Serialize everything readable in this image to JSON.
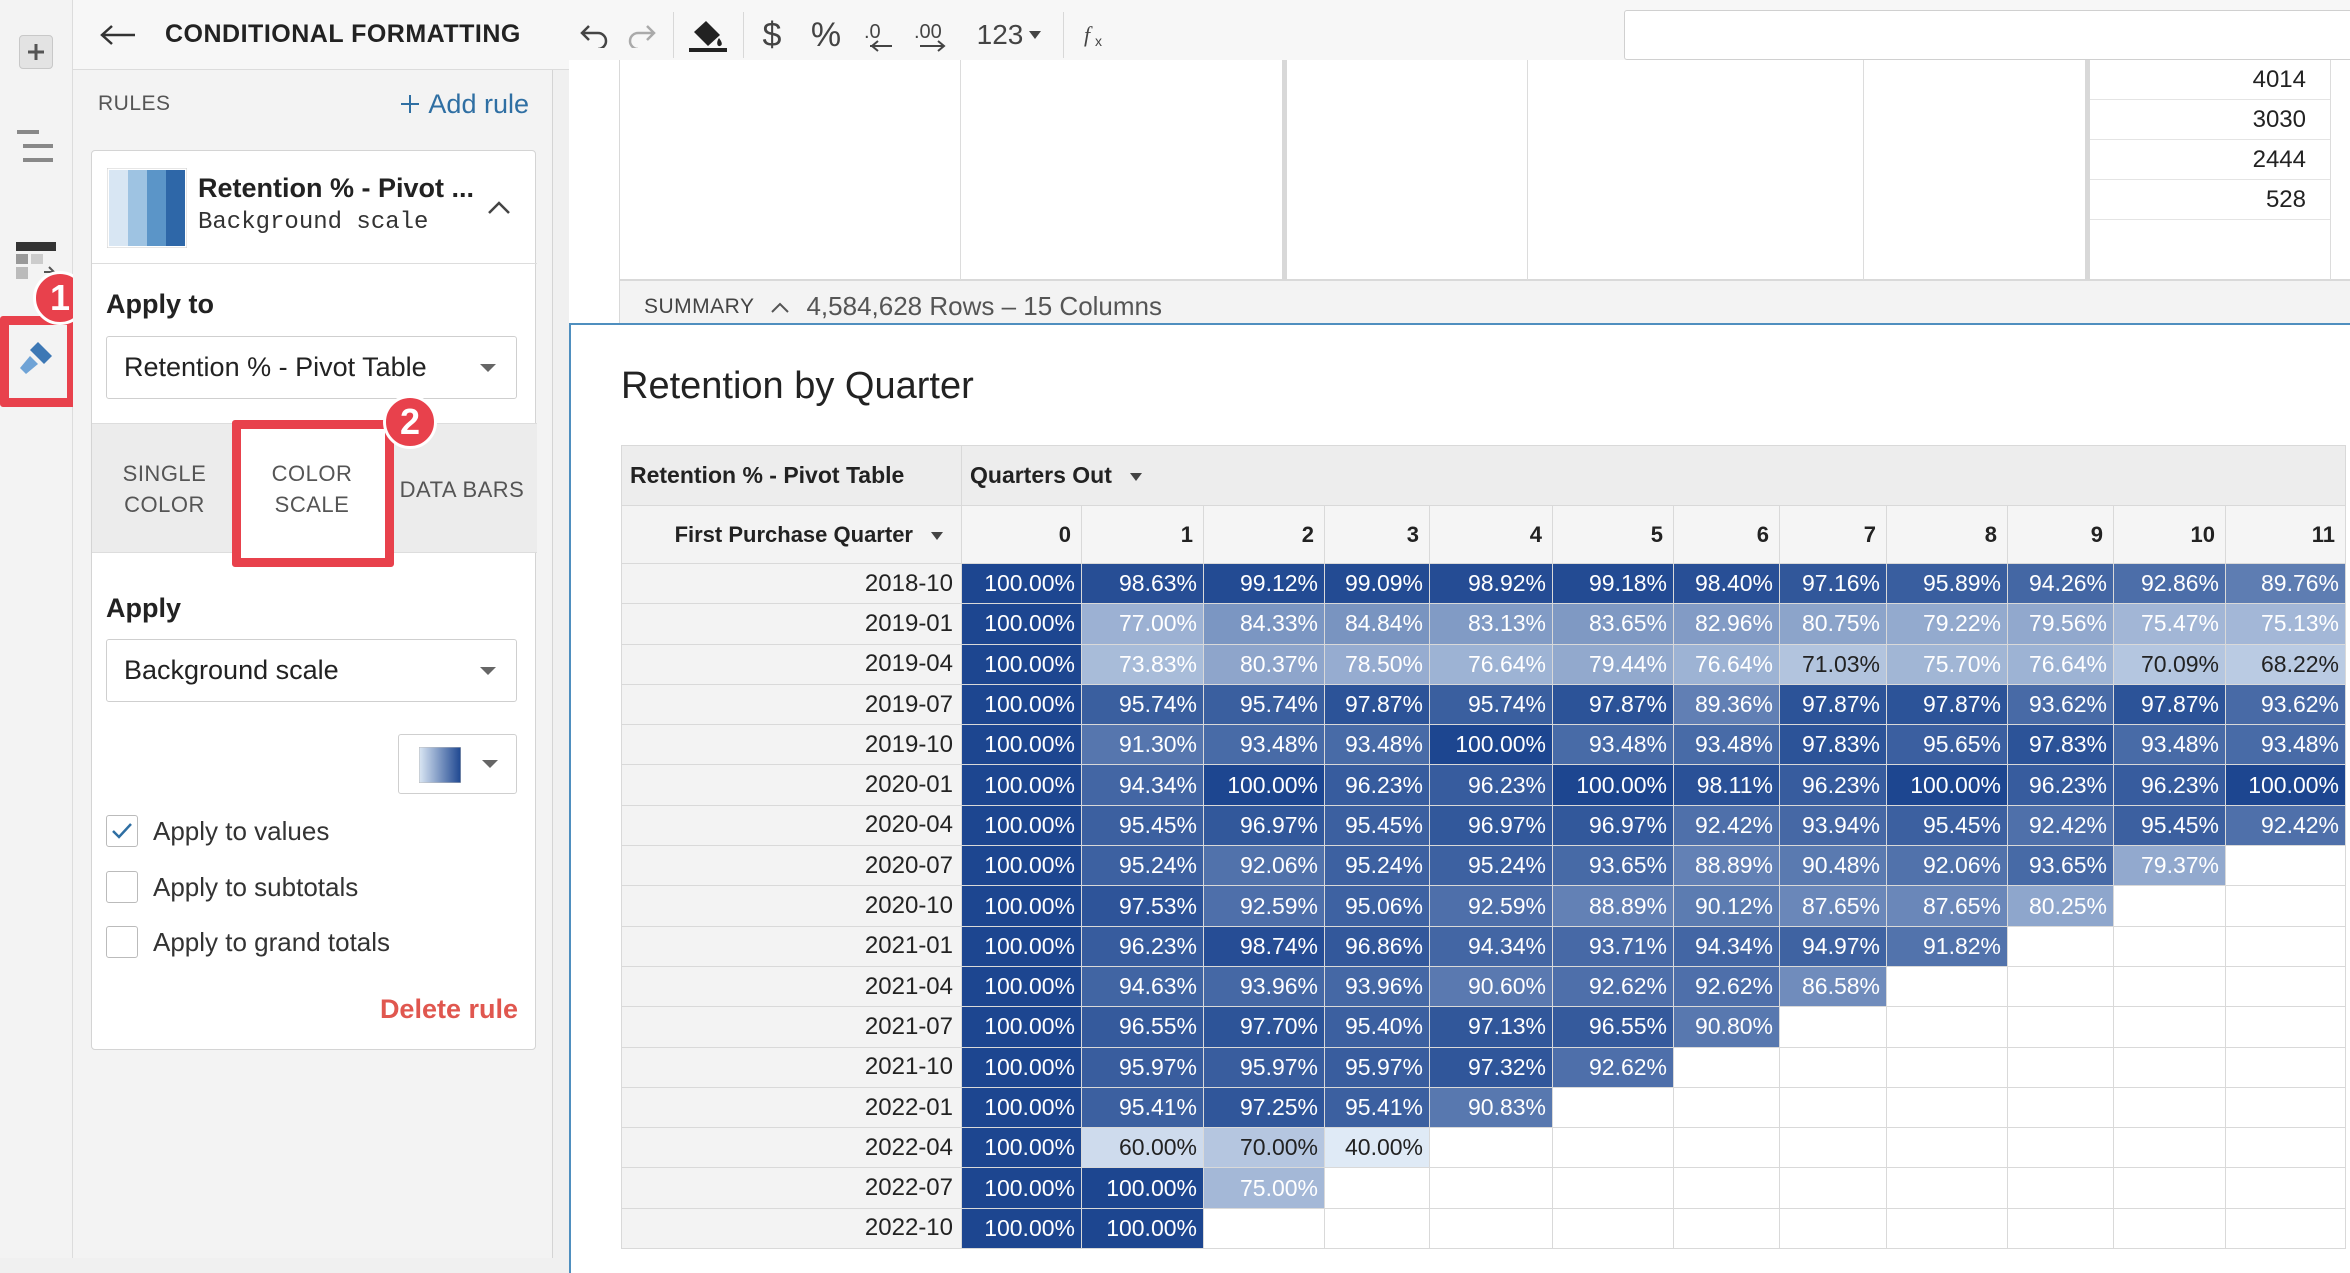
{
  "panel": {
    "title": "CONDITIONAL FORMATTING",
    "rules_label": "RULES",
    "add_rule_label": "Add rule",
    "rule": {
      "name": "Retention % - Pivot ...",
      "type": "Background scale"
    },
    "apply_to_label": "Apply to",
    "apply_to_value": "Retention % - Pivot Table",
    "tabs": [
      {
        "label": "SINGLE COLOR"
      },
      {
        "label": "COLOR SCALE"
      },
      {
        "label": "DATA BARS"
      }
    ],
    "apply_label": "Apply",
    "apply_value": "Background scale",
    "checks": [
      {
        "label": "Apply to values",
        "checked": true
      },
      {
        "label": "Apply to subtotals",
        "checked": false
      },
      {
        "label": "Apply to grand totals",
        "checked": false
      }
    ],
    "delete_rule_label": "Delete rule"
  },
  "callouts": [
    "1",
    "2"
  ],
  "toolbar": {
    "number_format": "123"
  },
  "top_table": {
    "values": [
      "4014",
      "3030",
      "2444",
      "528"
    ],
    "summary_label": "SUMMARY",
    "summary_counts": "4,584,628 Rows – 15 Columns"
  },
  "pivot": {
    "title": "Retention by Quarter",
    "values_label": "Retention % - Pivot Table",
    "column_label": "Quarters Out",
    "row_label": "First Purchase Quarter",
    "columns": [
      "0",
      "1",
      "2",
      "3",
      "4",
      "5",
      "6",
      "7",
      "8",
      "9",
      "10",
      "11"
    ],
    "rows": [
      {
        "label": "2018-10",
        "values": [
          "100.00%",
          "98.63%",
          "99.12%",
          "99.09%",
          "98.92%",
          "99.18%",
          "98.40%",
          "97.16%",
          "95.89%",
          "94.26%",
          "92.86%",
          "89.76%"
        ]
      },
      {
        "label": "2019-01",
        "values": [
          "100.00%",
          "77.00%",
          "84.33%",
          "84.84%",
          "83.13%",
          "83.65%",
          "82.96%",
          "80.75%",
          "79.22%",
          "79.56%",
          "75.47%",
          "75.13%"
        ]
      },
      {
        "label": "2019-04",
        "values": [
          "100.00%",
          "73.83%",
          "80.37%",
          "78.50%",
          "76.64%",
          "79.44%",
          "76.64%",
          "71.03%",
          "75.70%",
          "76.64%",
          "70.09%",
          "68.22%"
        ]
      },
      {
        "label": "2019-07",
        "values": [
          "100.00%",
          "95.74%",
          "95.74%",
          "97.87%",
          "95.74%",
          "97.87%",
          "89.36%",
          "97.87%",
          "97.87%",
          "93.62%",
          "97.87%",
          "93.62%"
        ]
      },
      {
        "label": "2019-10",
        "values": [
          "100.00%",
          "91.30%",
          "93.48%",
          "93.48%",
          "100.00%",
          "93.48%",
          "93.48%",
          "97.83%",
          "95.65%",
          "97.83%",
          "93.48%",
          "93.48%"
        ]
      },
      {
        "label": "2020-01",
        "values": [
          "100.00%",
          "94.34%",
          "100.00%",
          "96.23%",
          "96.23%",
          "100.00%",
          "98.11%",
          "96.23%",
          "100.00%",
          "96.23%",
          "96.23%",
          "100.00%"
        ]
      },
      {
        "label": "2020-04",
        "values": [
          "100.00%",
          "95.45%",
          "96.97%",
          "95.45%",
          "96.97%",
          "96.97%",
          "92.42%",
          "93.94%",
          "95.45%",
          "92.42%",
          "95.45%",
          "92.42%"
        ]
      },
      {
        "label": "2020-07",
        "values": [
          "100.00%",
          "95.24%",
          "92.06%",
          "95.24%",
          "95.24%",
          "93.65%",
          "88.89%",
          "90.48%",
          "92.06%",
          "93.65%",
          "79.37%"
        ]
      },
      {
        "label": "2020-10",
        "values": [
          "100.00%",
          "97.53%",
          "92.59%",
          "95.06%",
          "92.59%",
          "88.89%",
          "90.12%",
          "87.65%",
          "87.65%",
          "80.25%"
        ]
      },
      {
        "label": "2021-01",
        "values": [
          "100.00%",
          "96.23%",
          "98.74%",
          "96.86%",
          "94.34%",
          "93.71%",
          "94.34%",
          "94.97%",
          "91.82%"
        ]
      },
      {
        "label": "2021-04",
        "values": [
          "100.00%",
          "94.63%",
          "93.96%",
          "93.96%",
          "90.60%",
          "92.62%",
          "92.62%",
          "86.58%"
        ]
      },
      {
        "label": "2021-07",
        "values": [
          "100.00%",
          "96.55%",
          "97.70%",
          "95.40%",
          "97.13%",
          "96.55%",
          "90.80%"
        ]
      },
      {
        "label": "2021-10",
        "values": [
          "100.00%",
          "95.97%",
          "95.97%",
          "95.97%",
          "97.32%",
          "92.62%"
        ]
      },
      {
        "label": "2022-01",
        "values": [
          "100.00%",
          "95.41%",
          "97.25%",
          "95.41%",
          "90.83%"
        ]
      },
      {
        "label": "2022-04",
        "values": [
          "100.00%",
          "60.00%",
          "70.00%",
          "40.00%"
        ]
      },
      {
        "label": "2022-07",
        "values": [
          "100.00%",
          "100.00%",
          "75.00%"
        ]
      },
      {
        "label": "2022-10",
        "values": [
          "100.00%",
          "100.00%"
        ]
      }
    ],
    "scale": {
      "low_color": "#dfeaf6",
      "high_color": "#1d4690",
      "min": 40,
      "max": 100
    }
  }
}
